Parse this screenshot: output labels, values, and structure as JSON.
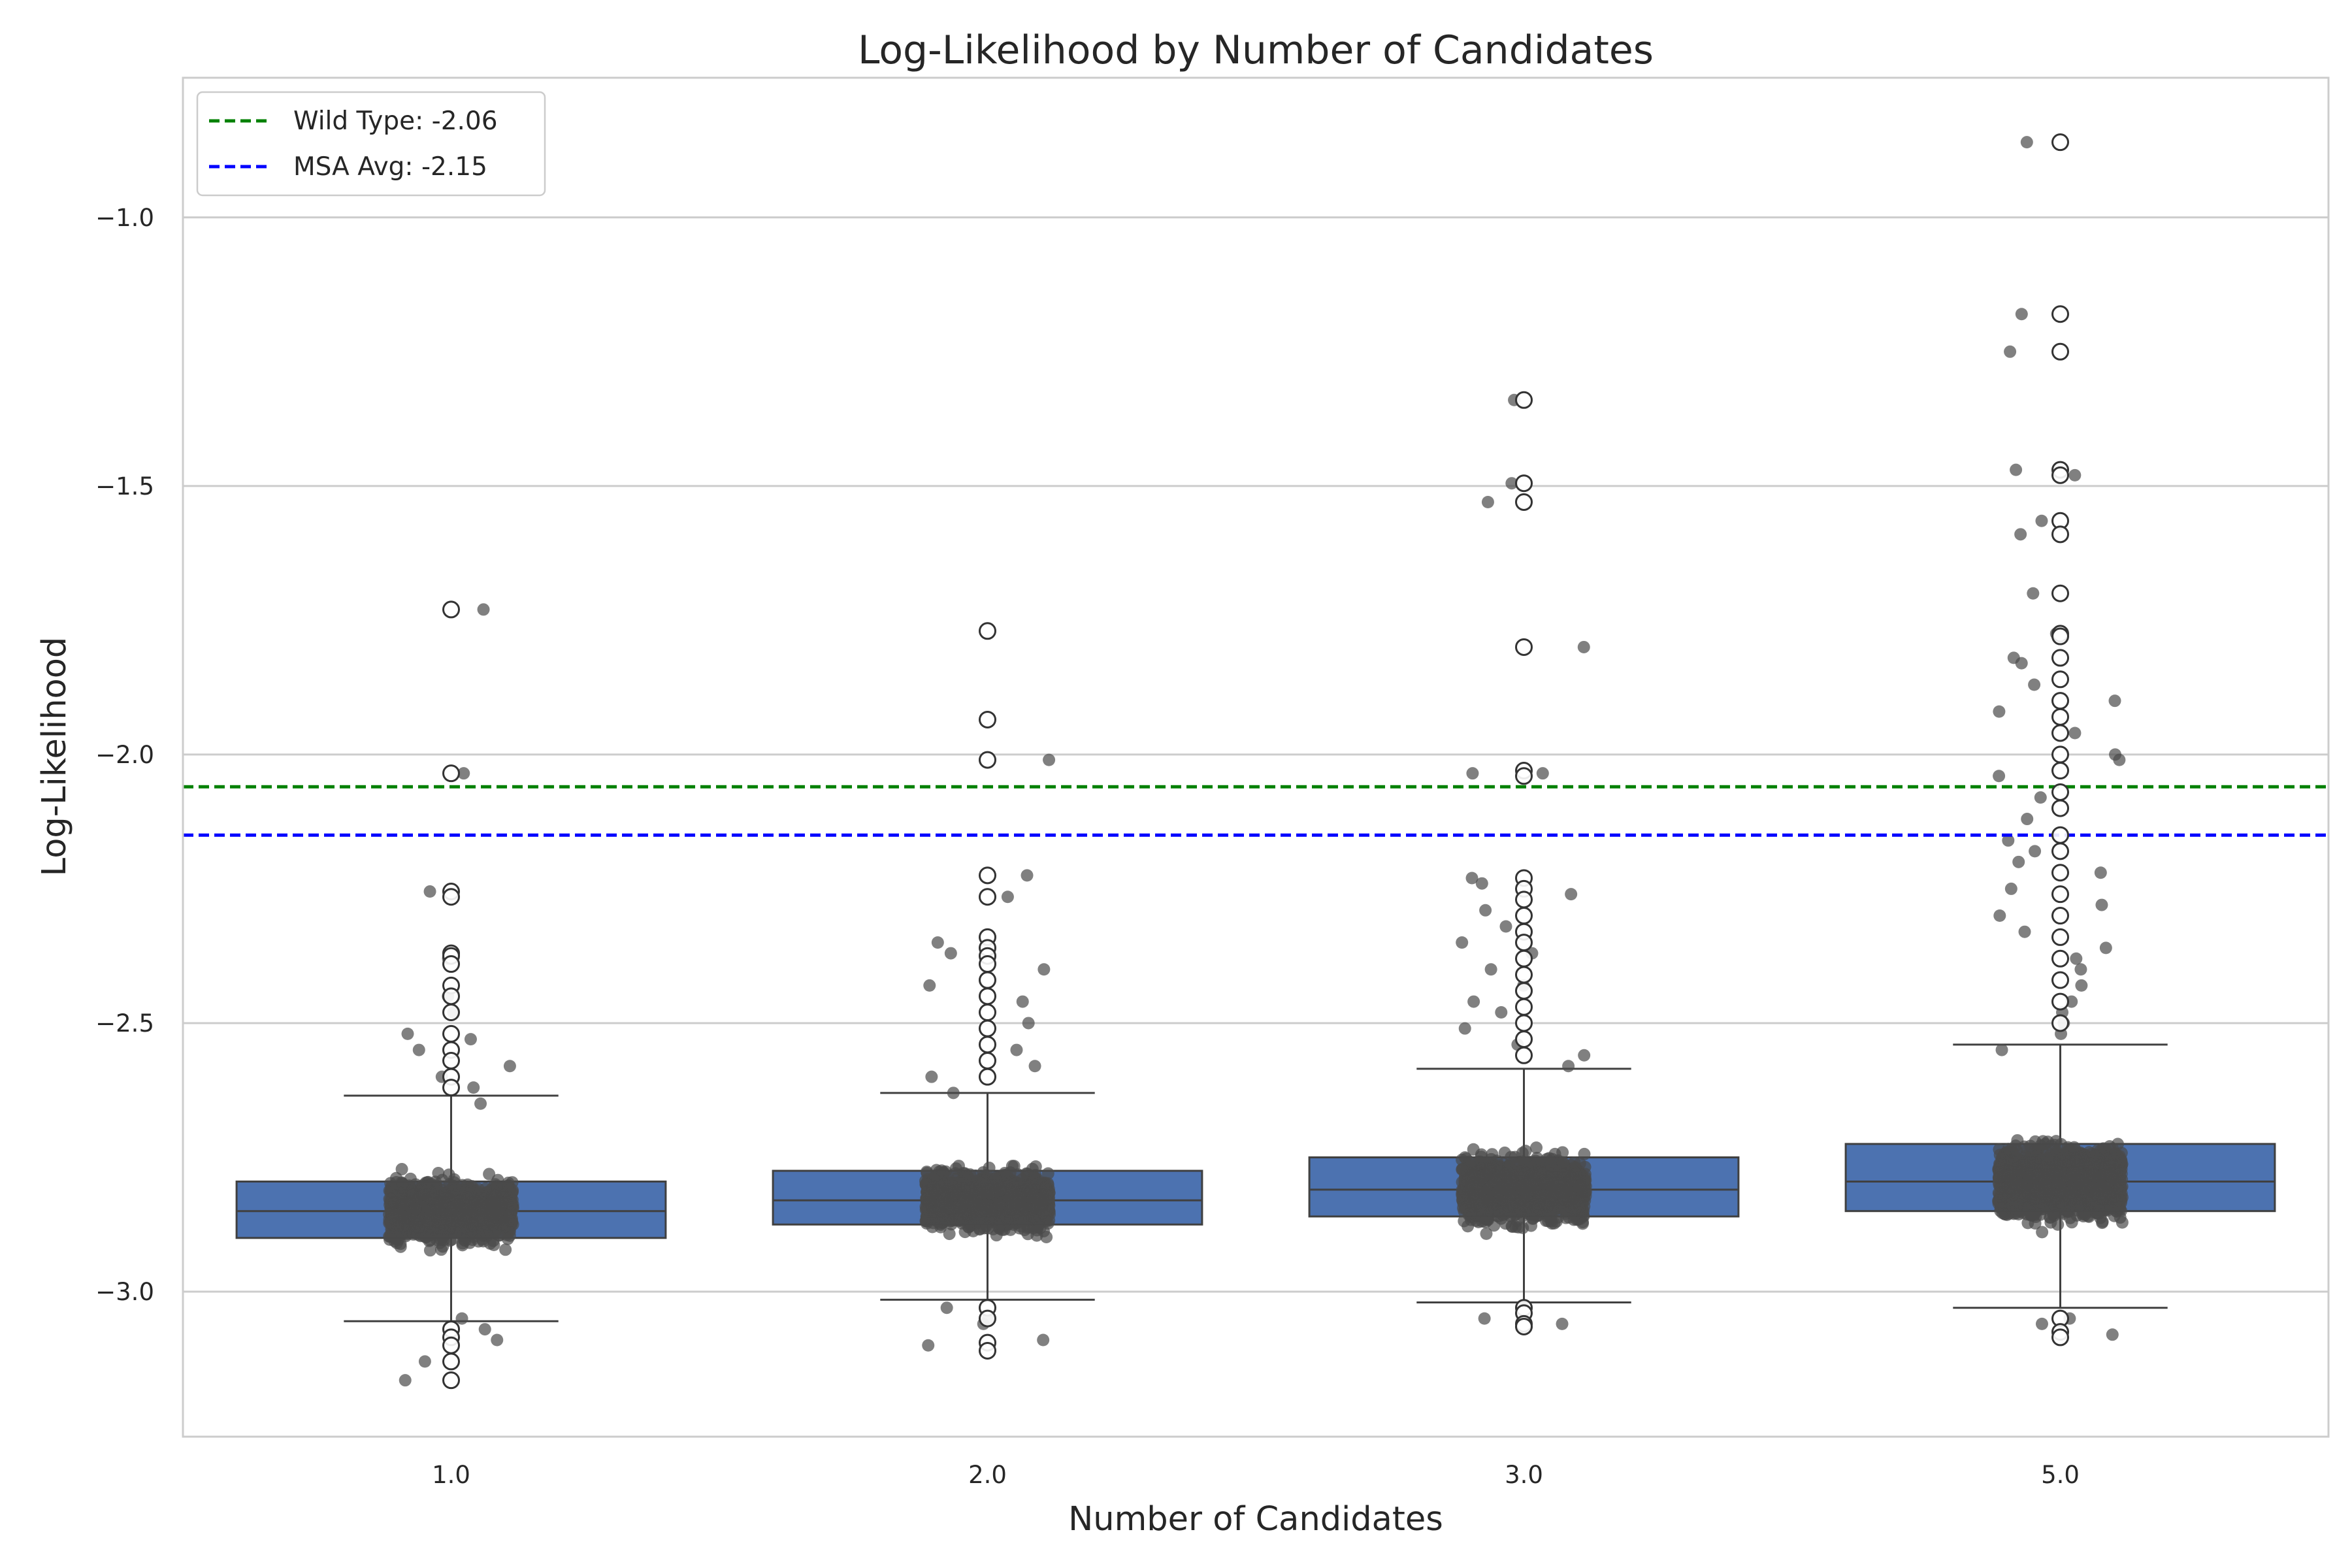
{
  "chart_data": {
    "type": "box",
    "title": "Log-Likelihood by Number of Candidates",
    "xlabel": "Number of Candidates",
    "ylabel": "Log-Likelihood",
    "ylim": [
      -3.27,
      -0.74
    ],
    "grid": "horizontal",
    "legend_position": "top-left",
    "categories": [
      "1.0",
      "2.0",
      "3.0",
      "5.0"
    ],
    "y_ticks": [
      -3.0,
      -2.5,
      -2.0,
      -1.5,
      -1.0
    ],
    "y_tick_labels": [
      "−3.0",
      "−2.5",
      "−2.0",
      "−1.5",
      "−1.0"
    ],
    "boxes": [
      {
        "category": "1.0",
        "q1": -2.9,
        "median": -2.85,
        "q3": -2.795,
        "whisker_low": -3.055,
        "whisker_high": -2.635,
        "outliers": [
          -1.73,
          -2.035,
          -2.255,
          -2.265,
          -2.37,
          -2.375,
          -2.39,
          -2.43,
          -2.45,
          -2.48,
          -2.52,
          -2.55,
          -2.57,
          -2.6,
          -2.62,
          -3.07,
          -3.085,
          -3.1,
          -3.13,
          -3.165
        ]
      },
      {
        "category": "2.0",
        "q1": -2.875,
        "median": -2.83,
        "q3": -2.775,
        "whisker_low": -3.015,
        "whisker_high": -2.63,
        "outliers": [
          -1.77,
          -1.935,
          -2.01,
          -2.225,
          -2.265,
          -2.34,
          -2.36,
          -2.375,
          -2.39,
          -2.42,
          -2.45,
          -2.48,
          -2.51,
          -2.54,
          -2.57,
          -2.6,
          -3.03,
          -3.05,
          -3.095,
          -3.11
        ]
      },
      {
        "category": "3.0",
        "q1": -2.86,
        "median": -2.81,
        "q3": -2.75,
        "whisker_low": -3.02,
        "whisker_high": -2.585,
        "outliers": [
          -1.34,
          -1.495,
          -1.53,
          -1.8,
          -2.03,
          -2.04,
          -2.23,
          -2.25,
          -2.27,
          -2.3,
          -2.33,
          -2.35,
          -2.38,
          -2.41,
          -2.44,
          -2.47,
          -2.5,
          -2.53,
          -2.56,
          -3.03,
          -3.04,
          -3.06,
          -3.065
        ]
      },
      {
        "category": "5.0",
        "q1": -2.85,
        "median": -2.795,
        "q3": -2.725,
        "whisker_low": -3.03,
        "whisker_high": -2.54,
        "outliers": [
          -0.86,
          -1.18,
          -1.25,
          -1.47,
          -1.48,
          -1.565,
          -1.59,
          -1.7,
          -1.775,
          -1.78,
          -1.82,
          -1.86,
          -1.9,
          -1.93,
          -1.96,
          -2.0,
          -2.03,
          -2.07,
          -2.1,
          -2.15,
          -2.18,
          -2.22,
          -2.26,
          -2.3,
          -2.34,
          -2.38,
          -2.42,
          -2.46,
          -2.5,
          -3.05,
          -3.075,
          -3.085
        ]
      }
    ],
    "jitter_points": [
      {
        "category": "1.0",
        "count": 1400,
        "dense_low": -3.02,
        "dense_high": -2.68,
        "extras": [
          -1.73,
          -2.035,
          -2.255,
          -2.38,
          -2.45,
          -2.48,
          -2.52,
          -2.53,
          -2.55,
          -2.58,
          -2.6,
          -2.62,
          -2.65,
          -3.05,
          -3.07,
          -3.09,
          -3.13,
          -3.165
        ]
      },
      {
        "category": "2.0",
        "count": 1400,
        "dense_low": -3.0,
        "dense_high": -2.66,
        "extras": [
          -2.01,
          -2.225,
          -2.265,
          -2.35,
          -2.37,
          -2.4,
          -2.43,
          -2.46,
          -2.5,
          -2.55,
          -2.58,
          -2.6,
          -2.63,
          -3.03,
          -3.05,
          -3.06,
          -3.09,
          -3.1
        ]
      },
      {
        "category": "3.0",
        "count": 1500,
        "dense_low": -3.0,
        "dense_high": -2.62,
        "extras": [
          -1.34,
          -1.495,
          -1.53,
          -1.8,
          -2.035,
          -2.035,
          -2.23,
          -2.24,
          -2.26,
          -2.29,
          -2.32,
          -2.35,
          -2.37,
          -2.4,
          -2.43,
          -2.46,
          -2.48,
          -2.51,
          -2.54,
          -2.56,
          -2.58,
          -3.03,
          -3.05,
          -3.06
        ]
      },
      {
        "category": "5.0",
        "count": 1700,
        "dense_low": -3.0,
        "dense_high": -2.58,
        "extras": [
          -0.86,
          -1.18,
          -1.25,
          -1.47,
          -1.48,
          -1.565,
          -1.59,
          -1.7,
          -1.775,
          -1.82,
          -1.83,
          -1.87,
          -1.9,
          -1.92,
          -1.96,
          -2.0,
          -2.01,
          -2.04,
          -2.08,
          -2.12,
          -2.16,
          -2.18,
          -2.2,
          -2.22,
          -2.25,
          -2.28,
          -2.3,
          -2.33,
          -2.36,
          -2.38,
          -2.4,
          -2.43,
          -2.46,
          -2.48,
          -2.5,
          -2.52,
          -2.55,
          -3.05,
          -3.06,
          -3.08
        ]
      }
    ],
    "reference_lines": [
      {
        "label": "Wild Type: -2.06",
        "value": -2.06,
        "color": "#008000",
        "style": "dashed"
      },
      {
        "label": "MSA Avg: -2.15",
        "value": -2.15,
        "color": "#0000ff",
        "style": "dashed"
      }
    ],
    "colors": {
      "box_fill": "#4c72b0",
      "box_edge": "#404040",
      "points": "#4a4a4a",
      "grid": "#cccccc",
      "spine": "#cccccc"
    }
  }
}
